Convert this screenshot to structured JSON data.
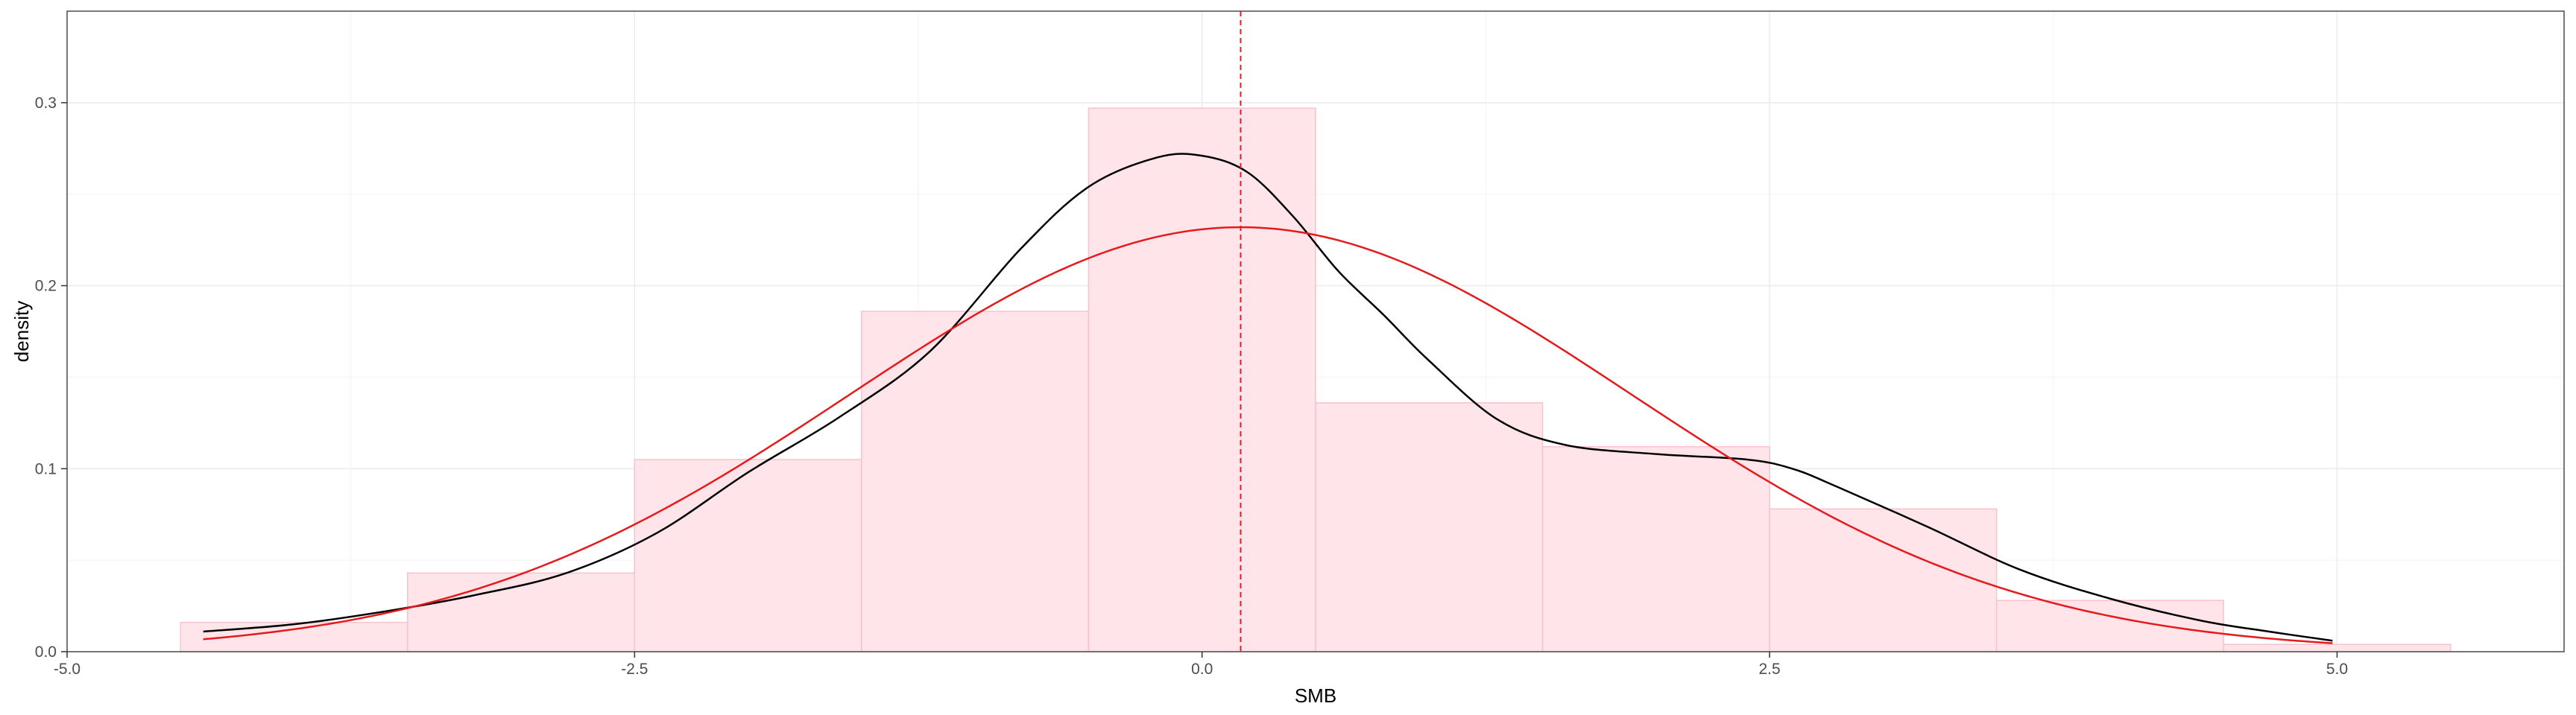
{
  "chart_data": {
    "type": "bar",
    "title": "",
    "xlabel": "SMB",
    "ylabel": "density",
    "xlim": [
      -5.0,
      6.0
    ],
    "ylim": [
      0,
      0.35
    ],
    "x_ticks": [
      -5.0,
      -2.5,
      0.0,
      2.5,
      5.0
    ],
    "x_tick_labels": [
      "-5.0",
      "-2.5",
      "0.0",
      "2.5",
      "5.0"
    ],
    "y_ticks": [
      0.0,
      0.1,
      0.2,
      0.3
    ],
    "y_tick_labels": [
      "0.0",
      "0.1",
      "0.2",
      "0.3"
    ],
    "grid": true,
    "bar_fill": "#ffe4ea",
    "bar_stroke": "#f7c2cc",
    "histogram": {
      "bins": [
        {
          "x0": -4.5,
          "x1": -3.5,
          "density": 0.016
        },
        {
          "x0": -3.5,
          "x1": -2.5,
          "density": 0.043
        },
        {
          "x0": -2.5,
          "x1": -1.5,
          "density": 0.105
        },
        {
          "x0": -1.5,
          "x1": -0.5,
          "density": 0.186
        },
        {
          "x0": -0.5,
          "x1": 0.5,
          "density": 0.297
        },
        {
          "x0": 0.5,
          "x1": 1.5,
          "density": 0.136
        },
        {
          "x0": 1.5,
          "x1": 2.5,
          "density": 0.112
        },
        {
          "x0": 2.5,
          "x1": 3.5,
          "density": 0.078
        },
        {
          "x0": 3.5,
          "x1": 4.5,
          "density": 0.028
        },
        {
          "x0": 4.5,
          "x1": 5.5,
          "density": 0.004
        }
      ]
    },
    "kernel_density": {
      "color": "#000000",
      "x": [
        -4.4,
        -4.0,
        -3.6,
        -3.2,
        -2.8,
        -2.4,
        -2.0,
        -1.6,
        -1.2,
        -0.8,
        -0.5,
        -0.2,
        0.0,
        0.2,
        0.4,
        0.6,
        0.8,
        1.0,
        1.3,
        1.6,
        2.0,
        2.4,
        2.6,
        2.8,
        3.2,
        3.6,
        4.0,
        4.4,
        4.7,
        4.98
      ],
      "y": [
        0.011,
        0.015,
        0.022,
        0.031,
        0.043,
        0.065,
        0.098,
        0.128,
        0.164,
        0.22,
        0.254,
        0.27,
        0.271,
        0.262,
        0.238,
        0.208,
        0.184,
        0.159,
        0.127,
        0.113,
        0.108,
        0.105,
        0.1,
        0.09,
        0.068,
        0.045,
        0.029,
        0.017,
        0.011,
        0.006
      ]
    },
    "normal_fit": {
      "color": "#e41a1c",
      "mean": 0.17,
      "sd": 1.72,
      "x_min": -4.4,
      "x_max": 4.98
    },
    "mean_line": {
      "x": 0.17,
      "color": "#e41a1c",
      "style": "dashed"
    }
  }
}
